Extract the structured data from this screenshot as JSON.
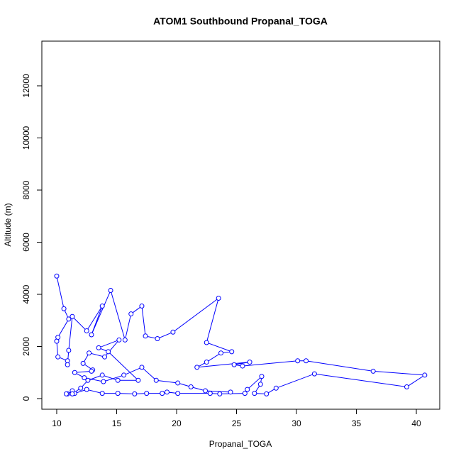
{
  "chart_data": {
    "type": "line",
    "title": "ATOM1 Southbound Propanal_TOGA",
    "x_label": "Propanal_TOGA",
    "y_label": "Altitude (m)",
    "series": [
      {
        "color": "#0000ff",
        "x": [
          10,
          10.6,
          11,
          10.1,
          10,
          10.1,
          10.9,
          10.9,
          11,
          11.3,
          12.5,
          13.8,
          12.9,
          14.5,
          15.7,
          16.2,
          17.1,
          17.4,
          18.4,
          19.7,
          23.5,
          22.5,
          24.6,
          23.7,
          22.5,
          21.7,
          26.1,
          24.8,
          25.5,
          30.1,
          30.8,
          36.4,
          40.7,
          39.2,
          31.5,
          28.3,
          27.5,
          26.5,
          27,
          27.1,
          25.9,
          25.7,
          23.6,
          22.8,
          20.1,
          19.2,
          18.8,
          17.5,
          16.5,
          15.1,
          13.8,
          12.5,
          11.5,
          11.3,
          10.9,
          10.8,
          11.3,
          12,
          12.6,
          13.8,
          15.1,
          16.8,
          14.3,
          13.5,
          15.2,
          14,
          12.7,
          12.2,
          13,
          12.9,
          11.5,
          12.3,
          13.9,
          15.6,
          17.1,
          18.3,
          20.1,
          21.2,
          22.4,
          24.5
        ],
        "values": [
          4700,
          3450,
          3050,
          2350,
          2200,
          1600,
          1450,
          1300,
          1850,
          3150,
          2600,
          3550,
          2450,
          4150,
          2250,
          3250,
          3550,
          2400,
          2300,
          2550,
          3850,
          2150,
          1800,
          1750,
          1400,
          1200,
          1400,
          1300,
          1250,
          1450,
          1450,
          1050,
          900,
          450,
          950,
          400,
          180,
          200,
          550,
          850,
          350,
          200,
          180,
          200,
          200,
          250,
          200,
          200,
          180,
          200,
          200,
          350,
          200,
          300,
          180,
          180,
          180,
          400,
          700,
          900,
          700,
          700,
          1800,
          1950,
          2250,
          1600,
          1750,
          1350,
          1100,
          1050,
          1000,
          800,
          650,
          900,
          1200,
          700,
          600,
          450,
          300,
          250
        ]
      }
    ],
    "xlim": [
      8.76,
      41.95
    ],
    "ylim": [
      -408,
      13714
    ],
    "xticks": [
      10,
      15,
      20,
      25,
      30,
      35,
      40
    ],
    "yticks": [
      0,
      2000,
      4000,
      6000,
      8000,
      10000,
      12000
    ]
  }
}
